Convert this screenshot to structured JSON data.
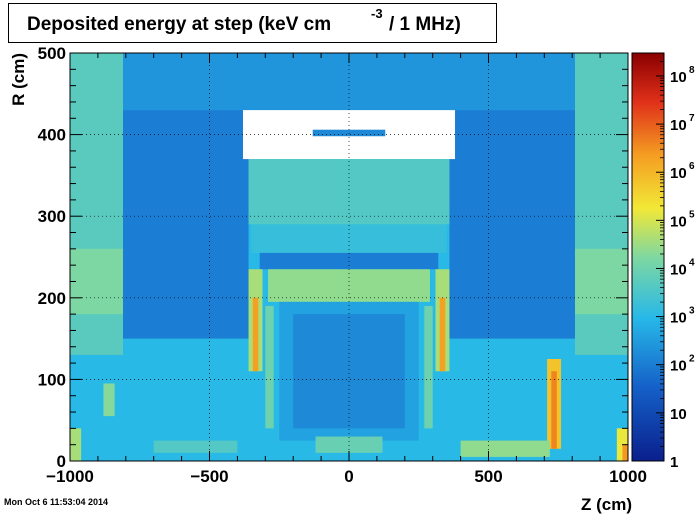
{
  "title": {
    "main": "Deposited energy at step (keV cm",
    "exponent": "-3",
    "tail": "/ 1 MHz)"
  },
  "timestamp": "Mon Oct  6 11:53:04 2014",
  "colors": {
    "map_low": "#0a1f8c",
    "map_mid": "#27b8e8",
    "map_hi": "#f2e836",
    "map_max": "#8a0000",
    "frame": "#000000"
  },
  "chart_data": {
    "type": "heatmap",
    "xlabel": "Z (cm)",
    "ylabel": "R (cm)",
    "xlim": [
      -1000,
      1000
    ],
    "ylim": [
      0,
      500
    ],
    "x_ticks": [
      {
        "value": -1000,
        "label": "−1000"
      },
      {
        "value": -500,
        "label": "−500"
      },
      {
        "value": 0,
        "label": "0"
      },
      {
        "value": 500,
        "label": "500"
      },
      {
        "value": 1000,
        "label": "1000"
      }
    ],
    "y_ticks": [
      {
        "value": 0,
        "label": "0"
      },
      {
        "value": 100,
        "label": "100"
      },
      {
        "value": 200,
        "label": "200"
      },
      {
        "value": 300,
        "label": "300"
      },
      {
        "value": 400,
        "label": "400"
      },
      {
        "value": 500,
        "label": "500"
      }
    ],
    "grid": true,
    "colorbar": {
      "scale": "log",
      "range": [
        1,
        300000000
      ],
      "ticks": [
        {
          "value": 1,
          "base": "1",
          "exp": ""
        },
        {
          "value": 10,
          "base": "10",
          "exp": ""
        },
        {
          "value": 100,
          "base": "10",
          "exp": "2"
        },
        {
          "value": 1000,
          "base": "10",
          "exp": "3"
        },
        {
          "value": 10000,
          "base": "10",
          "exp": "4"
        },
        {
          "value": 100000,
          "base": "10",
          "exp": "5"
        },
        {
          "value": 1000000,
          "base": "10",
          "exp": "6"
        },
        {
          "value": 10000000,
          "base": "10",
          "exp": "7"
        },
        {
          "value": 100000000,
          "base": "10",
          "exp": "8"
        }
      ]
    },
    "regions": [
      {
        "z": [
          -1000,
          1000
        ],
        "r": [
          0,
          500
        ],
        "level": 3.0
      },
      {
        "z": [
          -1000,
          -810
        ],
        "r": [
          130,
          500
        ],
        "level": 3.7
      },
      {
        "z": [
          810,
          1000
        ],
        "r": [
          130,
          500
        ],
        "level": 3.7
      },
      {
        "z": [
          -1000,
          -810
        ],
        "r": [
          180,
          260
        ],
        "level": 4.2
      },
      {
        "z": [
          810,
          1000
        ],
        "r": [
          180,
          260
        ],
        "level": 4.2
      },
      {
        "z": [
          -810,
          810
        ],
        "r": [
          430,
          500
        ],
        "level": 2.4
      },
      {
        "z": [
          -810,
          -360
        ],
        "r": [
          150,
          430
        ],
        "level": 2.0
      },
      {
        "z": [
          360,
          810
        ],
        "r": [
          150,
          430
        ],
        "level": 2.0
      },
      {
        "z": [
          -380,
          380
        ],
        "r": [
          370,
          430
        ],
        "level": 0.0
      },
      {
        "z": [
          -360,
          360
        ],
        "r": [
          290,
          370
        ],
        "level": 3.6
      },
      {
        "z": [
          -350,
          350
        ],
        "r": [
          255,
          290
        ],
        "level": 3.2
      },
      {
        "z": [
          -320,
          320
        ],
        "r": [
          235,
          255
        ],
        "level": 2.0
      },
      {
        "z": [
          -290,
          290
        ],
        "r": [
          195,
          235
        ],
        "level": 4.4
      },
      {
        "z": [
          -250,
          250
        ],
        "r": [
          25,
          195
        ],
        "level": 2.6
      },
      {
        "z": [
          -200,
          200
        ],
        "r": [
          40,
          180
        ],
        "level": 2.2
      },
      {
        "z": [
          -360,
          -310
        ],
        "r": [
          110,
          235
        ],
        "level": 4.6
      },
      {
        "z": [
          310,
          360
        ],
        "r": [
          110,
          235
        ],
        "level": 4.6
      },
      {
        "z": [
          -345,
          -325
        ],
        "r": [
          110,
          200
        ],
        "level": 6.3
      },
      {
        "z": [
          325,
          345
        ],
        "r": [
          110,
          200
        ],
        "level": 6.3
      },
      {
        "z": [
          -300,
          -270
        ],
        "r": [
          40,
          190
        ],
        "level": 4.0
      },
      {
        "z": [
          270,
          300
        ],
        "r": [
          40,
          190
        ],
        "level": 4.0
      },
      {
        "z": [
          -880,
          -840
        ],
        "r": [
          55,
          95
        ],
        "level": 4.3
      },
      {
        "z": [
          -1000,
          -960
        ],
        "r": [
          0,
          40
        ],
        "level": 4.6
      },
      {
        "z": [
          960,
          1000
        ],
        "r": [
          0,
          40
        ],
        "level": 5.2
      },
      {
        "z": [
          980,
          1000
        ],
        "r": [
          0,
          20
        ],
        "level": 6.4
      },
      {
        "z": [
          710,
          760
        ],
        "r": [
          15,
          125
        ],
        "level": 5.8
      },
      {
        "z": [
          725,
          745
        ],
        "r": [
          15,
          110
        ],
        "level": 6.6
      },
      {
        "z": [
          -120,
          120
        ],
        "r": [
          10,
          30
        ],
        "level": 3.9
      },
      {
        "z": [
          -700,
          -400
        ],
        "r": [
          10,
          25
        ],
        "level": 3.6
      },
      {
        "z": [
          400,
          720
        ],
        "r": [
          5,
          25
        ],
        "level": 4.4
      },
      {
        "z": [
          -130,
          130
        ],
        "r": [
          398,
          406
        ],
        "level": 2.2
      }
    ]
  }
}
